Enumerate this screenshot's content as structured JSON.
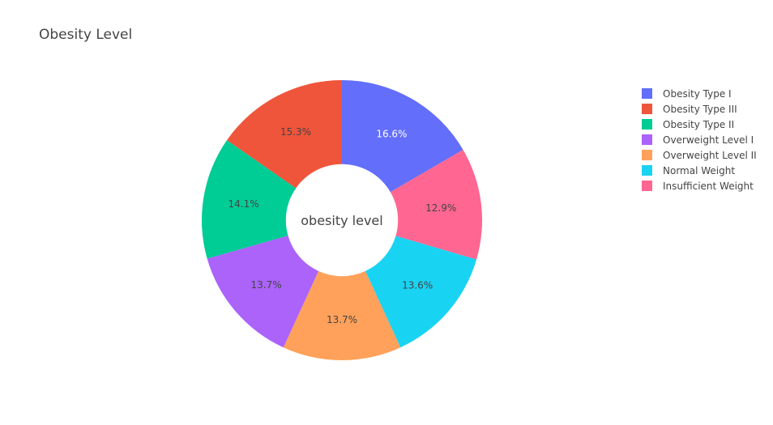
{
  "chart_data": {
    "type": "pie",
    "hole": 0.4,
    "title": "Obesity Level",
    "center_annotation": "obesity level",
    "slices": [
      {
        "name": "Obesity Type I",
        "value": 16.6,
        "label": "16.6%",
        "color": "#636efa",
        "label_color": "#ffffff"
      },
      {
        "name": "Insufficient Weight",
        "value": 12.9,
        "label": "12.9%",
        "color": "#ff6692",
        "label_color": "#444444"
      },
      {
        "name": "Normal Weight",
        "value": 13.6,
        "label": "13.6%",
        "color": "#19d3f3",
        "label_color": "#444444"
      },
      {
        "name": "Overweight Level II",
        "value": 13.7,
        "label": "13.7%",
        "color": "#ffa15a",
        "label_color": "#444444"
      },
      {
        "name": "Overweight Level I",
        "value": 13.7,
        "label": "13.7%",
        "color": "#ab63fa",
        "label_color": "#444444"
      },
      {
        "name": "Obesity Type II",
        "value": 14.1,
        "label": "14.1%",
        "color": "#00cc96",
        "label_color": "#444444"
      },
      {
        "name": "Obesity Type III",
        "value": 15.3,
        "label": "15.3%",
        "color": "#ef553b",
        "label_color": "#444444"
      }
    ],
    "legend": [
      {
        "name": "Obesity Type I",
        "color": "#636efa"
      },
      {
        "name": "Obesity Type III",
        "color": "#ef553b"
      },
      {
        "name": "Obesity Type II",
        "color": "#00cc96"
      },
      {
        "name": "Overweight Level I",
        "color": "#ab63fa"
      },
      {
        "name": "Overweight Level II",
        "color": "#ffa15a"
      },
      {
        "name": "Normal Weight",
        "color": "#19d3f3"
      },
      {
        "name": "Insufficient Weight",
        "color": "#ff6692"
      }
    ],
    "legend_position": "top-right",
    "direction": "clockwise",
    "rotation": "starts at 12 o'clock"
  }
}
